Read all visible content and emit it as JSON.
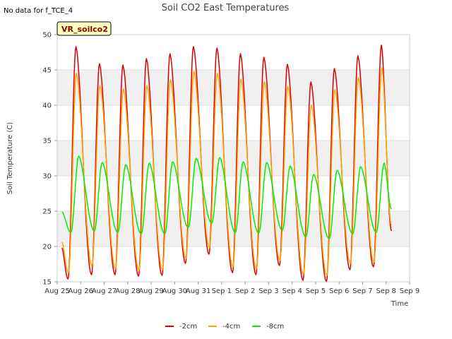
{
  "chart_data": {
    "type": "line",
    "title": "Soil CO2 East Temperatures",
    "no_data_note": "No data for f_TCE_4",
    "site_badge": "VR_soilco2",
    "xlabel": "Time",
    "ylabel": "Soil Temperature (C)",
    "ylim": [
      15,
      50
    ],
    "y_ticks": [
      15,
      20,
      25,
      30,
      35,
      40,
      45,
      50
    ],
    "y_tick_labels": [
      "15",
      "20",
      "25",
      "30",
      "35",
      "40",
      "45",
      "50"
    ],
    "x_tick_labels": [
      "Aug 25",
      "Aug 26",
      "Aug 27",
      "Aug 28",
      "Aug 29",
      "Aug 30",
      "Aug 31",
      "Sep 1",
      "Sep 2",
      "Sep 3",
      "Sep 4",
      "Sep 5",
      "Sep 6",
      "Sep 7",
      "Sep 8",
      "Sep 9"
    ],
    "x_range_days": [
      0,
      15
    ],
    "grid": true,
    "shaded_bands": [
      [
        20,
        25
      ],
      [
        30,
        35
      ],
      [
        40,
        45
      ]
    ],
    "legend_placement": "bottom-center",
    "series": [
      {
        "name": "-2cm",
        "color": "#dd0000",
        "start_value": 19.8,
        "end_value": 22.2,
        "daily_max": [
          48.3,
          45.9,
          45.7,
          46.6,
          47.3,
          48.3,
          48.1,
          47.3,
          46.8,
          45.8,
          43.3,
          45.2,
          47.0,
          48.5
        ],
        "daily_min": [
          15.4,
          16.0,
          16.0,
          15.8,
          15.9,
          17.6,
          18.9,
          16.3,
          16.0,
          17.3,
          15.2,
          15.0,
          16.7,
          17.1
        ]
      },
      {
        "name": "-4cm",
        "color": "#ffa500",
        "start_value": 20.6,
        "end_value": 23.0,
        "daily_max": [
          44.5,
          42.8,
          42.3,
          42.8,
          43.6,
          44.8,
          44.5,
          43.7,
          43.3,
          42.7,
          40.0,
          42.2,
          43.9,
          45.3
        ],
        "daily_min": [
          16.3,
          17.2,
          16.8,
          16.6,
          16.7,
          18.3,
          19.8,
          17.1,
          16.8,
          18.0,
          16.0,
          15.9,
          17.6,
          17.8
        ]
      },
      {
        "name": "-8cm",
        "color": "#00ee00",
        "start_value": 24.9,
        "end_value": 25.3,
        "daily_max": [
          32.8,
          31.9,
          31.6,
          31.8,
          32.0,
          32.5,
          32.6,
          32.0,
          31.9,
          31.4,
          30.2,
          30.8,
          31.3,
          31.8
        ],
        "daily_min": [
          22.0,
          22.2,
          22.0,
          21.8,
          21.8,
          22.7,
          23.3,
          22.0,
          21.9,
          22.3,
          21.4,
          21.1,
          21.8,
          22.0
        ]
      }
    ]
  }
}
